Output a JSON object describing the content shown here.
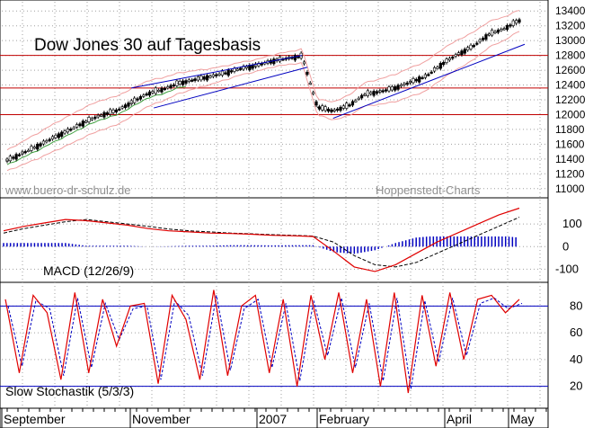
{
  "chart_data": [
    {
      "type": "candlestick",
      "title": "Dow Jones 30 auf Tagesbasis",
      "watermark_left": "www.buero-dr-schulz.de",
      "watermark_right": "Hoppenstedt-Charts",
      "ylim": [
        10900,
        13500
      ],
      "yticks": [
        11000,
        11200,
        11400,
        11600,
        11800,
        12000,
        12200,
        12400,
        12600,
        12800,
        13000,
        13200,
        13400
      ],
      "horizontal_lines": [
        12800,
        12360,
        12000
      ],
      "series": [
        {
          "name": "",
          "values": [
            11380,
            11480,
            11580,
            11690,
            11790,
            11900,
            11990,
            12050,
            12160,
            12280,
            12340,
            12420,
            12470,
            12510,
            12560,
            12620,
            12660,
            12720,
            12760,
            12790,
            12100,
            12050,
            12120,
            12270,
            12310,
            12360,
            12440,
            12520,
            12680,
            12810,
            12920,
            13080,
            13160,
            13270
          ]
        }
      ],
      "colors": {
        "price": "#000000",
        "band": "#f0a0a0",
        "channel": "#0000c0",
        "support": "#c00000",
        "ma": "#40a040"
      }
    },
    {
      "type": "line",
      "title": "MACD (12/26/9)",
      "ylim": [
        -150,
        200
      ],
      "yticks": [
        100,
        0,
        -100
      ],
      "series": [
        {
          "name": "",
          "values": [
            70,
            90,
            105,
            120,
            115,
            105,
            95,
            80,
            70,
            65,
            60,
            58,
            55,
            50,
            48,
            45,
            -20,
            -90,
            -110,
            -80,
            -30,
            20,
            60,
            100,
            140,
            170
          ]
        },
        {
          "name": "",
          "values": [
            60,
            80,
            95,
            110,
            120,
            110,
            100,
            90,
            78,
            70,
            65,
            60,
            57,
            53,
            50,
            47,
            20,
            -40,
            -80,
            -90,
            -70,
            -30,
            10,
            50,
            90,
            130
          ]
        }
      ],
      "colors": {
        "macd": "#e00000",
        "signal": "#000000",
        "histogram": "#0000c0"
      }
    },
    {
      "type": "line",
      "title": "Slow Stochastik (5/3/3)",
      "ylim": [
        5,
        95
      ],
      "yticks": [
        80,
        60,
        40,
        20
      ],
      "horizontal_lines": [
        80,
        20
      ],
      "series": [
        {
          "name": "",
          "values": [
            85,
            30,
            88,
            75,
            25,
            90,
            30,
            85,
            50,
            80,
            82,
            22,
            88,
            70,
            25,
            92,
            28,
            80,
            88,
            30,
            85,
            20,
            88,
            40,
            90,
            30,
            85,
            20,
            90,
            15,
            88,
            35,
            90,
            40,
            85,
            88,
            75,
            85
          ]
        },
        {
          "name": "",
          "values": [
            80,
            35,
            84,
            78,
            28,
            86,
            34,
            82,
            55,
            78,
            80,
            25,
            84,
            73,
            28,
            88,
            32,
            78,
            85,
            34,
            82,
            24,
            84,
            43,
            86,
            34,
            82,
            24,
            86,
            18,
            84,
            38,
            86,
            43,
            82,
            86,
            78,
            82
          ]
        }
      ],
      "colors": {
        "slow_k": "#e00000",
        "slow_d": "#0000c0",
        "levels": "#0000c0"
      }
    }
  ],
  "x_axis": {
    "labels": [
      "September",
      "November",
      "2007",
      "February",
      "April",
      "May"
    ]
  }
}
